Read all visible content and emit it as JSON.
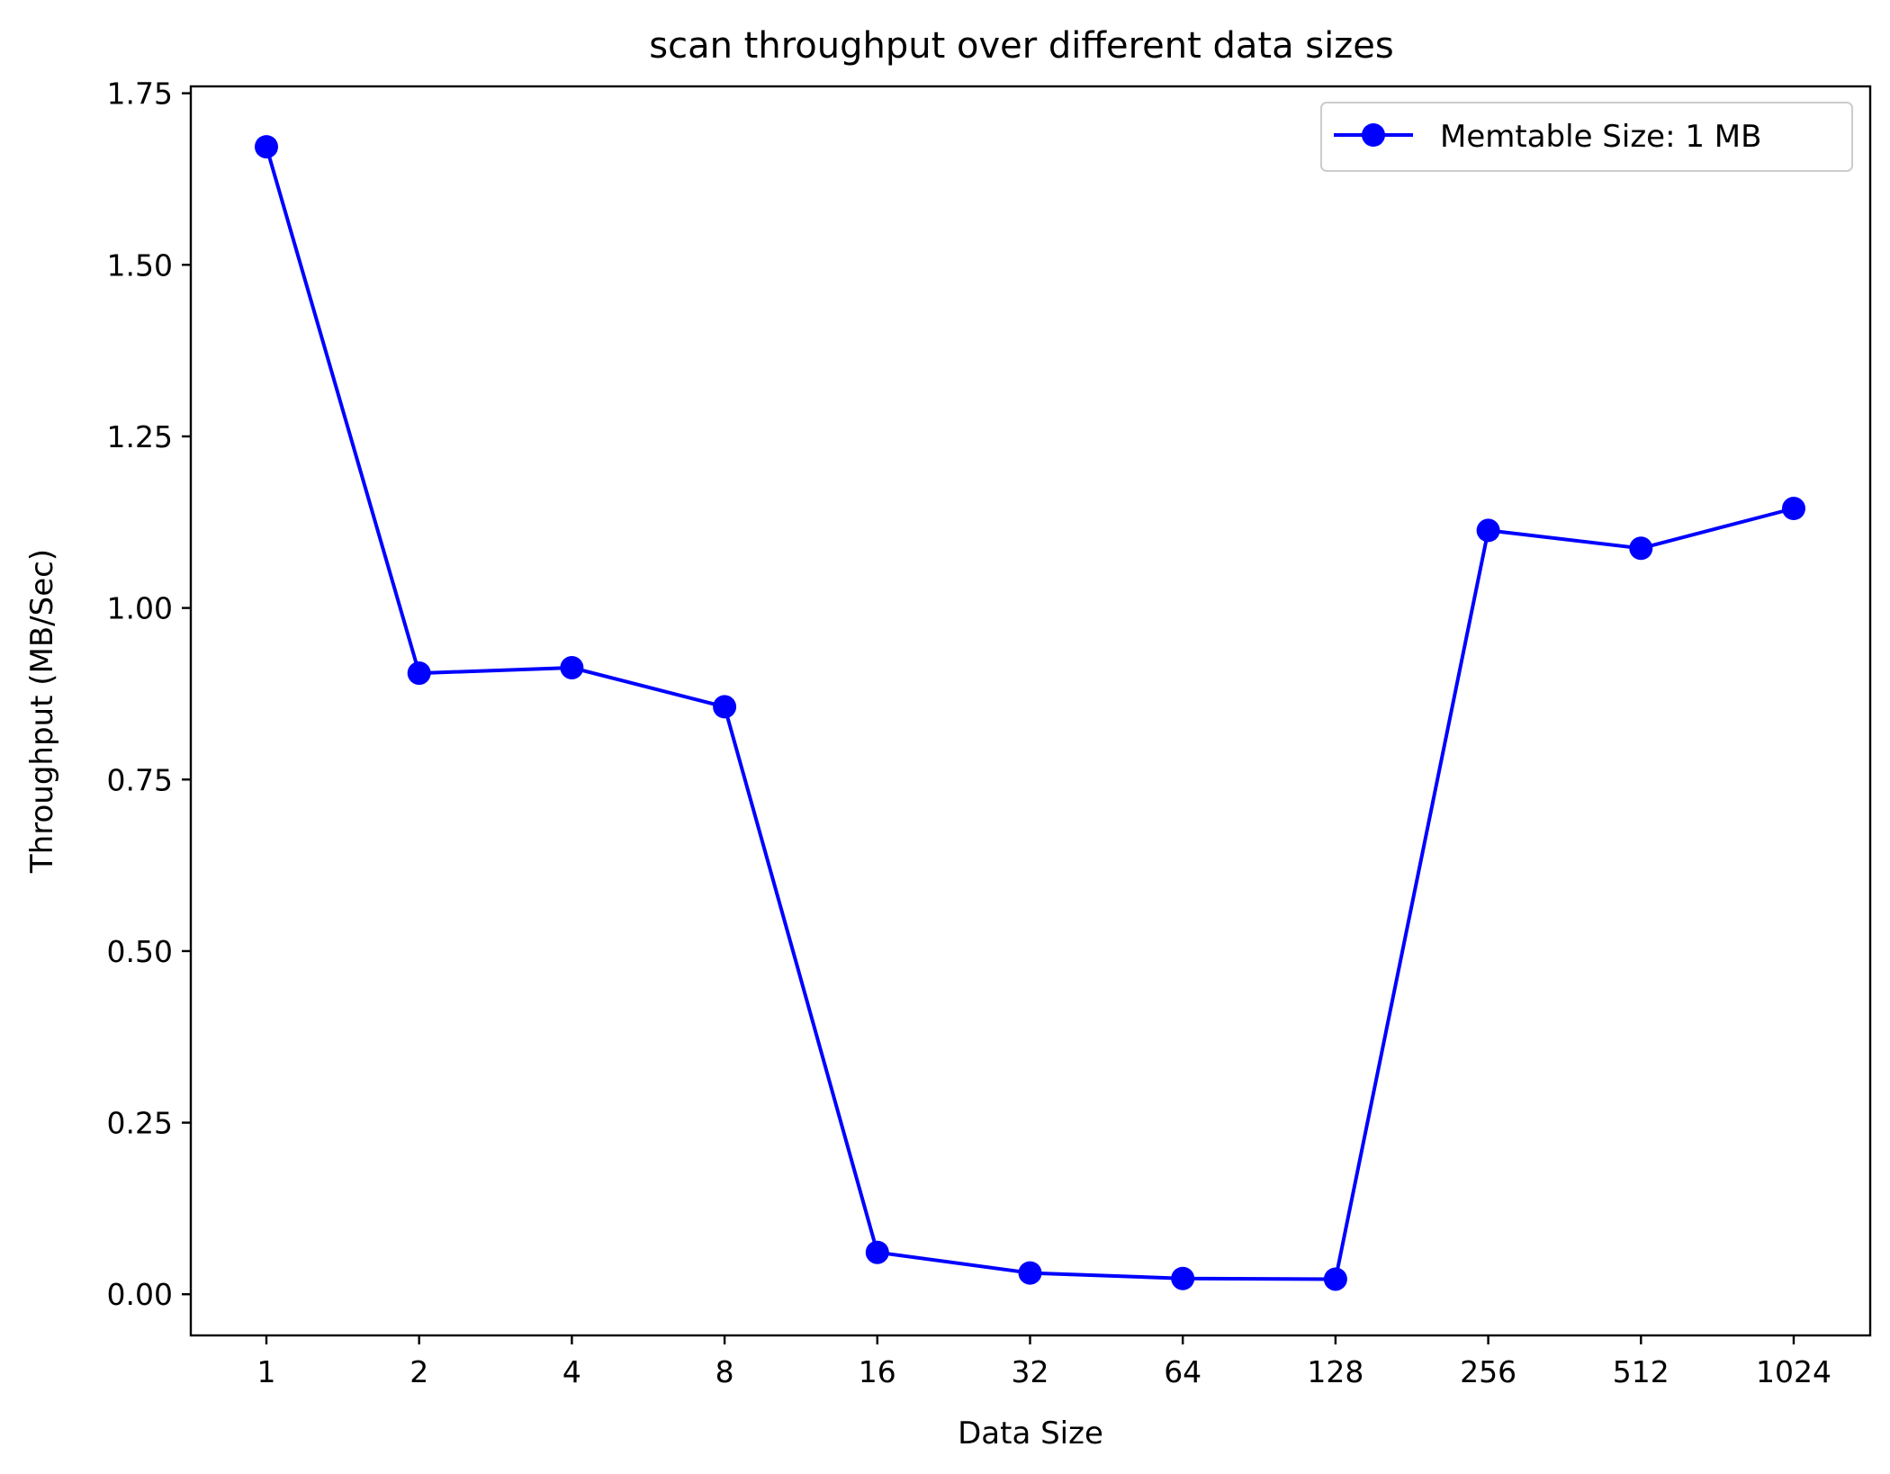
{
  "chart_data": {
    "type": "line",
    "title": "scan throughput over different data sizes",
    "xlabel": "Data Size",
    "ylabel": "Throughput (MB/Sec)",
    "categories": [
      "1",
      "2",
      "4",
      "8",
      "16",
      "32",
      "64",
      "128",
      "256",
      "512",
      "1024"
    ],
    "y_ticks": [
      "0.00",
      "0.25",
      "0.50",
      "0.75",
      "1.00",
      "1.25",
      "1.50",
      "1.75"
    ],
    "ylim": [
      -0.06,
      1.76
    ],
    "grid": false,
    "legend_position": "top-right",
    "series": [
      {
        "name": "Memtable Size: 1 MB",
        "color": "#0000ff",
        "marker": "circle",
        "values": [
          1.672,
          0.905,
          0.913,
          0.856,
          0.061,
          0.031,
          0.023,
          0.022,
          1.113,
          1.087,
          1.145
        ]
      }
    ]
  }
}
